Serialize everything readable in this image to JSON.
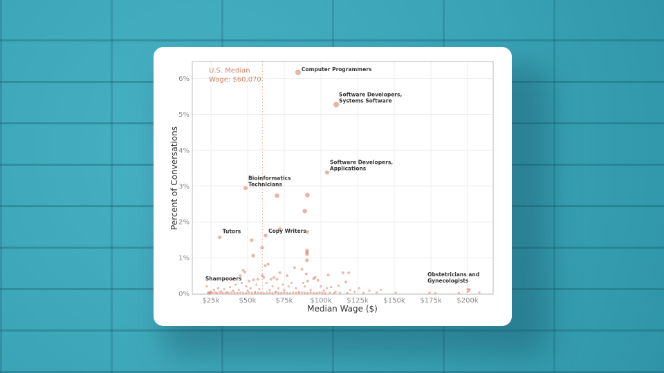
{
  "chart_data": {
    "type": "scatter",
    "xlabel": "Median Wage ($)",
    "ylabel": "Percent of Conversations",
    "xlim": [
      12.7,
      217
    ],
    "ylim": [
      0,
      6.46
    ],
    "x_unit": "thousand USD",
    "x_ticks": [
      25,
      50,
      75,
      100,
      125,
      150,
      175,
      200
    ],
    "x_tick_labels": [
      "$25k",
      "$50k",
      "$75k",
      "$100k",
      "$125k",
      "$150k",
      "$175k",
      "$200k"
    ],
    "y_ticks": [
      0,
      1,
      2,
      3,
      4,
      5,
      6
    ],
    "y_tick_labels": [
      "0%",
      "1%",
      "2%",
      "3%",
      "4%",
      "5%",
      "6%"
    ],
    "grid": true,
    "color": "#d9826a",
    "median_line": {
      "value": 60.07,
      "label_line1": "U.S. Median",
      "label_line2": "Wage: $60,070"
    },
    "labeled_points": [
      {
        "name1": "Computer Programmers",
        "name2": "",
        "x": 84.4,
        "y": 6.17
      },
      {
        "name1": "Software Developers,",
        "name2": "Systems Software",
        "x": 110.4,
        "y": 5.27
      },
      {
        "name1": "Software Developers,",
        "name2": "Applications",
        "x": 104.2,
        "y": 3.38
      },
      {
        "name1": "Bioinformatics",
        "name2": "Technicians",
        "x": 48.6,
        "y": 2.94
      },
      {
        "name1": "Tutors",
        "name2": "",
        "x": 31.0,
        "y": 1.57
      },
      {
        "name1": "Copy Writers",
        "name2": "",
        "x": 62.3,
        "y": 1.62
      },
      {
        "name1": "Shampooers",
        "name2": "",
        "x": 24.0,
        "y": 0.02
      },
      {
        "name1": "Obstetricians and",
        "name2": "Gynecologists",
        "x": 201.0,
        "y": 0.1
      }
    ],
    "points": [
      [
        70,
        2.73
      ],
      [
        90.7,
        2.75
      ],
      [
        89,
        2.3
      ],
      [
        72,
        1.8
      ],
      [
        90.7,
        1.72
      ],
      [
        52.8,
        1.49
      ],
      [
        59.9,
        1.28
      ],
      [
        53.8,
        1.06
      ],
      [
        90.5,
        1.2
      ],
      [
        90.5,
        1.15
      ],
      [
        90.5,
        1.1
      ],
      [
        90.5,
        0.93
      ],
      [
        22,
        0.2
      ],
      [
        23,
        0.02
      ],
      [
        25,
        0.05
      ],
      [
        27,
        0.1
      ],
      [
        28,
        0.03
      ],
      [
        30,
        0.15
      ],
      [
        32,
        0.06
      ],
      [
        34,
        0.12
      ],
      [
        36,
        0.04
      ],
      [
        38,
        0.18
      ],
      [
        40,
        0.4
      ],
      [
        40,
        0.08
      ],
      [
        42,
        0.25
      ],
      [
        44,
        0.1
      ],
      [
        45,
        0.5
      ],
      [
        46,
        0.3
      ],
      [
        47,
        0.65
      ],
      [
        48,
        0.6
      ],
      [
        49,
        0.2
      ],
      [
        50,
        0.08
      ],
      [
        51,
        0.35
      ],
      [
        52,
        0.15
      ],
      [
        54,
        0.38
      ],
      [
        55,
        0.05
      ],
      [
        56,
        0.25
      ],
      [
        57,
        0.4
      ],
      [
        58,
        0.12
      ],
      [
        60,
        0.5
      ],
      [
        61,
        0.45
      ],
      [
        62,
        0.78
      ],
      [
        63,
        0.3
      ],
      [
        64,
        0.82
      ],
      [
        65,
        0.1
      ],
      [
        66,
        0.4
      ],
      [
        67,
        0.2
      ],
      [
        68,
        0.45
      ],
      [
        69,
        0.05
      ],
      [
        70,
        0.4
      ],
      [
        71,
        0.15
      ],
      [
        72,
        0.58
      ],
      [
        74,
        0.25
      ],
      [
        75,
        0.1
      ],
      [
        77,
        0.5
      ],
      [
        78,
        0.2
      ],
      [
        80,
        0.3
      ],
      [
        82,
        0.72
      ],
      [
        83,
        0.15
      ],
      [
        85,
        0.05
      ],
      [
        87,
        0.68
      ],
      [
        88,
        0.3
      ],
      [
        89,
        0.2
      ],
      [
        90,
        0.55
      ],
      [
        91,
        0.35
      ],
      [
        93,
        0.1
      ],
      [
        95,
        0.42
      ],
      [
        96,
        0.45
      ],
      [
        98,
        0.37
      ],
      [
        100,
        0.2
      ],
      [
        102,
        0.08
      ],
      [
        104,
        0.15
      ],
      [
        105,
        0.52
      ],
      [
        107,
        0.18
      ],
      [
        110,
        0.05
      ],
      [
        112,
        0.22
      ],
      [
        115,
        0.58
      ],
      [
        117,
        0.32
      ],
      [
        119,
        0.58
      ],
      [
        120,
        0.1
      ],
      [
        123,
        0.05
      ],
      [
        126,
        0.15
      ],
      [
        129,
        0.02
      ],
      [
        133,
        0.08
      ],
      [
        138,
        0.03
      ],
      [
        141,
        0.1
      ],
      [
        151,
        0.02
      ],
      [
        174,
        0.02
      ],
      [
        178,
        0.01
      ],
      [
        194,
        0.02
      ],
      [
        200,
        0.12
      ],
      [
        200,
        0.05
      ],
      [
        208,
        0.03
      ],
      [
        24,
        0.01
      ],
      [
        26,
        0.02
      ],
      [
        29,
        0.01
      ],
      [
        31,
        0.03
      ],
      [
        33,
        0.01
      ],
      [
        35,
        0.02
      ],
      [
        37,
        0.01
      ],
      [
        39,
        0.03
      ],
      [
        41,
        0.02
      ],
      [
        43,
        0.01
      ],
      [
        45,
        0.03
      ],
      [
        47,
        0.02
      ],
      [
        49,
        0.01
      ],
      [
        51,
        0.03
      ],
      [
        53,
        0.02
      ],
      [
        55,
        0.01
      ],
      [
        57,
        0.03
      ],
      [
        59,
        0.02
      ],
      [
        61,
        0.01
      ],
      [
        63,
        0.03
      ],
      [
        65,
        0.02
      ],
      [
        67,
        0.01
      ],
      [
        69,
        0.03
      ],
      [
        71,
        0.02
      ],
      [
        73,
        0.01
      ],
      [
        75,
        0.03
      ],
      [
        77,
        0.02
      ],
      [
        79,
        0.01
      ],
      [
        81,
        0.03
      ],
      [
        83,
        0.02
      ],
      [
        85,
        0.01
      ],
      [
        87,
        0.03
      ],
      [
        89,
        0.02
      ],
      [
        91,
        0.01
      ],
      [
        93,
        0.03
      ],
      [
        95,
        0.02
      ],
      [
        97,
        0.01
      ],
      [
        99,
        0.03
      ],
      [
        101,
        0.02
      ],
      [
        103,
        0.01
      ],
      [
        106,
        0.02
      ],
      [
        109,
        0.01
      ],
      [
        113,
        0.02
      ],
      [
        118,
        0.01
      ]
    ]
  }
}
